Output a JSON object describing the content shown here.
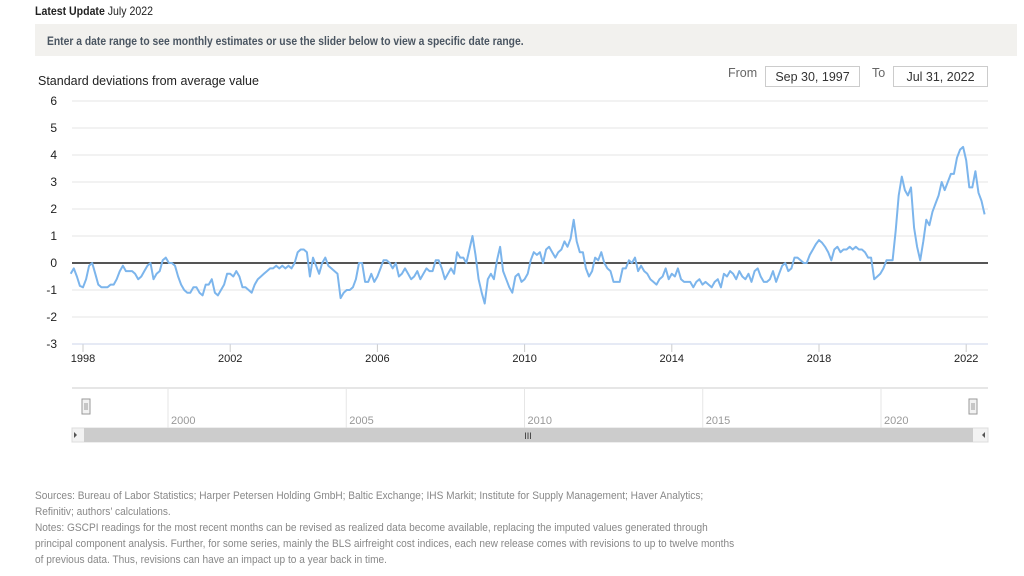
{
  "header": {
    "latest_label": "Latest Update",
    "latest_value": "July 2022",
    "instructions": "Enter a date range to see monthly estimates or use the slider below to view a specific date range."
  },
  "range": {
    "from_label": "From",
    "from_value": "Sep 30, 1997",
    "to_label": "To",
    "to_value": "Jul 31, 2022"
  },
  "colors": {
    "line": "#7cb5ec",
    "zero": "#555555",
    "grid": "#e6e6e6",
    "scrollbar": "#cccccc"
  },
  "navigator": {
    "labels": [
      "2000",
      "2005",
      "2010",
      "2015",
      "2020"
    ],
    "scroll_grip": "III"
  },
  "footnotes": {
    "sources": "Sources: Bureau of Labor Statistics; Harper Petersen Holding GmbH; Baltic Exchange; IHS Markit; Institute for Supply Management; Haver Analytics; Refinitiv; authors’ calculations.",
    "notes": "Notes: GSCPI readings for the most recent months can be revised as realized data become available, replacing the imputed values generated through principal component analysis. Further, for some series, mainly the BLS airfreight cost indices, each new release comes with revisions to up to twelve months of previous data. Thus, revisions can have an impact up to a year back in time."
  },
  "chart_data": {
    "type": "line",
    "title": "",
    "ylabel": "Standard deviations from average value",
    "xlabel": "",
    "ylim": [
      -3,
      6
    ],
    "yticks": [
      "6",
      "5",
      "4",
      "3",
      "2",
      "1",
      "0",
      "-1",
      "-2",
      "-3"
    ],
    "xticks": [
      "1998",
      "2002",
      "2006",
      "2010",
      "2014",
      "2018",
      "2022"
    ],
    "start": "1997-09",
    "end": "2022-07",
    "frequency": "monthly",
    "grid": true,
    "series": [
      {
        "name": "GSCPI",
        "values": [
          -0.4,
          -0.2,
          -0.5,
          -0.85,
          -0.9,
          -0.6,
          -0.1,
          0.0,
          -0.4,
          -0.8,
          -0.9,
          -0.9,
          -0.9,
          -0.8,
          -0.8,
          -0.6,
          -0.3,
          -0.1,
          -0.3,
          -0.3,
          -0.3,
          -0.4,
          -0.6,
          -0.5,
          -0.3,
          -0.1,
          0.0,
          -0.6,
          -0.4,
          -0.3,
          0.1,
          0.2,
          0.0,
          0.0,
          -0.1,
          -0.5,
          -0.8,
          -1.0,
          -1.1,
          -1.1,
          -0.9,
          -0.9,
          -1.1,
          -1.2,
          -0.8,
          -0.8,
          -0.6,
          -1.1,
          -1.2,
          -1.0,
          -0.8,
          -0.4,
          -0.4,
          -0.5,
          -0.3,
          -0.5,
          -0.9,
          -0.9,
          -1.0,
          -1.1,
          -0.8,
          -0.6,
          -0.5,
          -0.4,
          -0.3,
          -0.2,
          -0.2,
          -0.1,
          -0.2,
          -0.1,
          -0.2,
          -0.1,
          -0.2,
          0.0,
          0.4,
          0.5,
          0.5,
          0.4,
          -0.5,
          0.2,
          -0.1,
          -0.4,
          0.0,
          0.2,
          -0.1,
          -0.2,
          -0.3,
          -0.4,
          -1.3,
          -1.1,
          -1.0,
          -1.0,
          -0.9,
          -0.6,
          0.0,
          0.0,
          -0.7,
          -0.7,
          -0.4,
          -0.7,
          -0.5,
          -0.2,
          0.1,
          0.1,
          0.0,
          -0.2,
          0.0,
          -0.5,
          -0.4,
          -0.2,
          -0.4,
          -0.6,
          -0.5,
          -0.3,
          -0.6,
          -0.4,
          -0.2,
          -0.3,
          -0.3,
          0.1,
          0.1,
          -0.2,
          -0.6,
          -0.4,
          -0.2,
          -0.4,
          0.4,
          0.2,
          0.2,
          0.0,
          0.5,
          1.0,
          0.3,
          -0.6,
          -1.1,
          -1.5,
          -0.6,
          -0.4,
          -0.6,
          0.1,
          0.6,
          -0.3,
          -0.6,
          -0.9,
          -1.1,
          -0.5,
          -0.4,
          -0.7,
          -0.6,
          -0.4,
          0.1,
          0.4,
          0.3,
          0.4,
          0.0,
          0.5,
          0.6,
          0.4,
          0.2,
          0.4,
          0.5,
          0.8,
          0.6,
          0.9,
          1.6,
          0.8,
          0.4,
          0.4,
          -0.2,
          -0.5,
          -0.3,
          0.2,
          0.1,
          0.4,
          0.0,
          -0.2,
          -0.3,
          -0.7,
          -0.7,
          -0.7,
          -0.2,
          -0.2,
          0.1,
          0.0,
          0.2,
          -0.3,
          -0.1,
          -0.3,
          -0.4,
          -0.6,
          -0.7,
          -0.8,
          -0.6,
          -0.5,
          -0.2,
          -0.6,
          -0.4,
          -0.5,
          -0.2,
          -0.6,
          -0.7,
          -0.7,
          -0.7,
          -0.9,
          -0.7,
          -0.6,
          -0.8,
          -0.7,
          -0.8,
          -0.9,
          -0.7,
          -0.6,
          -0.9,
          -0.4,
          -0.5,
          -0.3,
          -0.4,
          -0.6,
          -0.3,
          -0.5,
          -0.6,
          -0.4,
          -0.7,
          -0.3,
          -0.2,
          -0.5,
          -0.7,
          -0.7,
          -0.6,
          -0.3,
          -0.7,
          -0.4,
          -0.1,
          0.0,
          -0.3,
          -0.2,
          0.2,
          0.2,
          0.1,
          0.0,
          0.0,
          0.3,
          0.5,
          0.7,
          0.85,
          0.75,
          0.6,
          0.4,
          0.1,
          0.5,
          0.6,
          0.4,
          0.5,
          0.5,
          0.6,
          0.5,
          0.6,
          0.5,
          0.5,
          0.4,
          0.2,
          0.2,
          -0.6,
          -0.5,
          -0.4,
          -0.2,
          0.1,
          0.1,
          0.1,
          1.2,
          2.5,
          3.2,
          2.7,
          2.5,
          2.8,
          1.3,
          0.6,
          0.1,
          0.8,
          1.6,
          1.4,
          1.9,
          2.2,
          2.5,
          3.0,
          2.7,
          3.0,
          3.3,
          3.3,
          3.9,
          4.2,
          4.3,
          3.8,
          2.8,
          2.8,
          3.4,
          2.6,
          2.3,
          1.8
        ]
      }
    ]
  }
}
